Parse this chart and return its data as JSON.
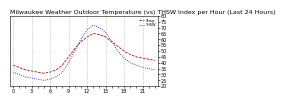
{
  "title": "Milwaukee Weather Outdoor Temperature (vs) THSW Index per Hour (Last 24 Hours)",
  "temp_color": "#cc0000",
  "thsw_color": "#0000cc",
  "hours": [
    0,
    1,
    2,
    3,
    4,
    5,
    6,
    7,
    8,
    9,
    10,
    11,
    12,
    13,
    14,
    15,
    16,
    17,
    18,
    19,
    20,
    21,
    22,
    23
  ],
  "temp_values": [
    38,
    36,
    34,
    33,
    32,
    31,
    32,
    34,
    38,
    45,
    52,
    58,
    62,
    65,
    64,
    62,
    58,
    54,
    50,
    47,
    45,
    44,
    43,
    42
  ],
  "thsw_values": [
    32,
    30,
    28,
    27,
    26,
    25,
    26,
    28,
    32,
    40,
    50,
    60,
    68,
    72,
    70,
    66,
    58,
    50,
    44,
    40,
    38,
    36,
    35,
    34
  ],
  "ylim": [
    20,
    80
  ],
  "background_color": "#ffffff",
  "grid_color": "#aaaaaa",
  "title_fontsize": 4.5,
  "tick_fontsize": 3.5
}
